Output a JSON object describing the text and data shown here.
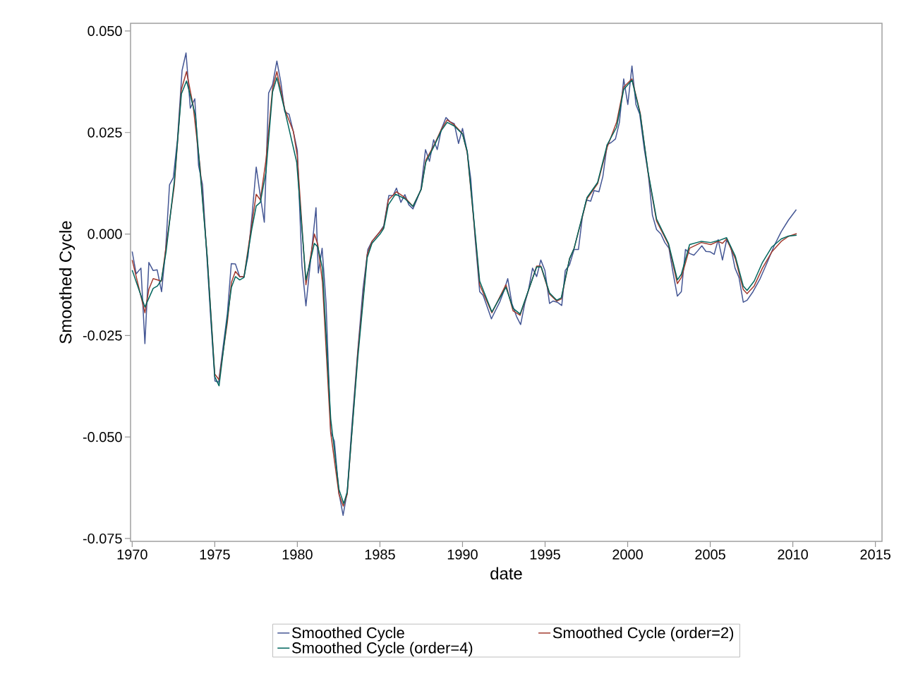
{
  "chart_data": {
    "type": "line",
    "xlabel": "date",
    "ylabel": "Smoothed Cycle",
    "xlim": [
      1969.9,
      2015.4
    ],
    "ylim": [
      -0.0757,
      0.0519
    ],
    "xticks": [
      1970,
      1975,
      1980,
      1985,
      1990,
      1995,
      2000,
      2005,
      2010,
      2015
    ],
    "yticks": [
      {
        "value": -0.075,
        "label": "-0.075"
      },
      {
        "value": -0.05,
        "label": "-0.050"
      },
      {
        "value": -0.025,
        "label": "-0.025"
      },
      {
        "value": 0,
        "label": "0.000"
      },
      {
        "value": 0.025,
        "label": "0.025"
      },
      {
        "value": 0.05,
        "label": "0.050"
      }
    ],
    "legend": "bottom",
    "series": [
      {
        "name": "Smoothed Cycle",
        "color": "#445694",
        "x": [
          1970.0,
          1970.24,
          1970.53,
          1970.77,
          1971.01,
          1971.27,
          1971.51,
          1971.78,
          1972.02,
          1972.26,
          1972.49,
          1972.74,
          1973.02,
          1973.26,
          1973.52,
          1973.79,
          1974.02,
          1974.26,
          1974.52,
          1974.77,
          1975.01,
          1975.23,
          1975.51,
          1975.76,
          1976.0,
          1976.25,
          1976.51,
          1976.77,
          1977.01,
          1977.25,
          1977.51,
          1977.76,
          1978.0,
          1978.26,
          1978.5,
          1978.76,
          1979.0,
          1979.24,
          1979.5,
          1979.76,
          1980.0,
          1980.28,
          1980.52,
          1981.13,
          1981.27,
          1981.5,
          1981.74,
          1982.02,
          1982.24,
          1982.52,
          1982.77,
          1983.02,
          1983.3,
          1983.66,
          1983.97,
          1984.27,
          1984.52,
          1984.95,
          1985.23,
          1985.54,
          1985.8,
          1986.0,
          1986.27,
          1986.51,
          1986.75,
          1987.0,
          1987.26,
          1987.48,
          1987.76,
          1988.0,
          1988.25,
          1988.47,
          1988.72,
          1989.0,
          1989.26,
          1989.5,
          1989.76,
          1990.0,
          1990.26,
          1990.5,
          1990.76,
          1991.04,
          1991.25,
          1991.5,
          1991.75,
          1991.99,
          1992.25,
          1992.49,
          1992.74,
          1992.99,
          1993.27,
          1993.52,
          1993.77,
          1993.99,
          1994.24,
          1994.49,
          1994.74,
          1994.99,
          1995.27,
          1995.49,
          1995.74,
          1996.01,
          1996.22,
          1996.48,
          1996.76,
          1997.02,
          1997.26,
          1997.5,
          1997.76,
          1997.97,
          1998.26,
          1998.5,
          1998.76,
          1999.02,
          1999.26,
          1999.5,
          1999.76,
          2000.01,
          2000.26,
          2000.5,
          2000.73,
          2001.01,
          2001.25,
          2001.5,
          2001.75,
          2002.01,
          2002.25,
          2002.5,
          2002.75,
          2003.01,
          2003.25,
          2003.5,
          2003.75,
          2004.01,
          2004.25,
          2004.49,
          2004.74,
          2005.0,
          2005.24,
          2005.48,
          2005.74,
          2005.99,
          2006.24,
          2006.5,
          2006.74,
          2007.0,
          2007.23,
          2007.59,
          2008.02,
          2008.45,
          2008.87,
          2009.3,
          2009.73,
          2010.21
        ],
        "values": [
          -0.0043,
          -0.0098,
          -0.0084,
          -0.027,
          -0.007,
          -0.009,
          -0.0088,
          -0.0142,
          -0.0041,
          0.0121,
          0.0139,
          0.0232,
          0.0403,
          0.0446,
          0.031,
          0.0333,
          0.0168,
          0.0121,
          -0.0055,
          -0.0218,
          -0.0362,
          -0.0365,
          -0.0276,
          -0.0197,
          -0.0073,
          -0.0074,
          -0.0105,
          -0.0105,
          -0.0055,
          0.0043,
          0.0165,
          0.0093,
          0.0029,
          0.0347,
          0.0368,
          0.0426,
          0.0374,
          0.0301,
          0.0295,
          0.0252,
          0.0206,
          -0.0079,
          -0.0177,
          0.0065,
          -0.0096,
          -0.0035,
          -0.0171,
          -0.0487,
          -0.051,
          -0.0638,
          -0.0693,
          -0.0635,
          -0.0473,
          -0.0287,
          -0.0137,
          -0.0038,
          -0.0018,
          0.0003,
          0.002,
          0.0095,
          0.0095,
          0.0113,
          0.0078,
          0.0097,
          0.0072,
          0.0062,
          0.0087,
          0.011,
          0.0208,
          0.0179,
          0.0232,
          0.0208,
          0.0258,
          0.0287,
          0.0276,
          0.0272,
          0.0223,
          0.026,
          0.0208,
          0.0136,
          -0.0009,
          -0.0142,
          -0.0151,
          -0.018,
          -0.0209,
          -0.0189,
          -0.0168,
          -0.0142,
          -0.011,
          -0.0171,
          -0.0203,
          -0.0223,
          -0.0171,
          -0.0139,
          -0.0084,
          -0.0105,
          -0.0064,
          -0.009,
          -0.0171,
          -0.0165,
          -0.0168,
          -0.0176,
          -0.009,
          -0.0076,
          -0.0038,
          -0.0038,
          0.0043,
          0.0084,
          0.0081,
          0.0107,
          0.0104,
          0.0142,
          0.022,
          0.0226,
          0.0234,
          0.0275,
          0.0382,
          0.0319,
          0.0414,
          0.0319,
          0.0295,
          0.0208,
          0.0147,
          0.0046,
          0.0011,
          0.0,
          -0.0021,
          -0.0035,
          -0.0096,
          -0.0153,
          -0.0142,
          -0.0038,
          -0.0048,
          -0.0052,
          -0.0041,
          -0.0029,
          -0.0043,
          -0.0044,
          -0.005,
          -0.0014,
          -0.0064,
          -0.0015,
          -0.0032,
          -0.0084,
          -0.0107,
          -0.0168,
          -0.0163,
          -0.0142,
          -0.011,
          -0.007,
          -0.0029,
          0.0006,
          0.0034,
          0.006
        ]
      },
      {
        "name": "Smoothed Cycle (order=2)",
        "color": "#a23a2e",
        "x": [
          1970.0,
          1970.77,
          1971.01,
          1971.27,
          1971.77,
          1972.05,
          1972.55,
          1972.98,
          1973.29,
          1973.69,
          1974.11,
          1974.54,
          1975.0,
          1975.26,
          1975.76,
          1976.01,
          1976.25,
          1976.51,
          1976.77,
          1977.25,
          1977.51,
          1977.76,
          1978.1,
          1978.5,
          1978.76,
          1979.24,
          1979.76,
          1979.99,
          1980.52,
          1981.03,
          1981.24,
          1981.52,
          1982.02,
          1982.52,
          1982.78,
          1983.02,
          1983.66,
          1984.23,
          1984.52,
          1985.01,
          1985.23,
          1985.51,
          1986.0,
          1986.51,
          1987.0,
          1987.5,
          1987.78,
          1988.29,
          1988.72,
          1989.07,
          1989.5,
          1990.0,
          1990.29,
          1990.78,
          1991.04,
          1991.78,
          1992.63,
          1993.06,
          1993.49,
          1994.49,
          1994.74,
          1995.27,
          1995.7,
          1995.98,
          1996.48,
          1996.76,
          1997.54,
          1998.18,
          1998.76,
          1999.33,
          1999.76,
          2000.26,
          2000.76,
          2001.25,
          2001.75,
          2002.47,
          2003.01,
          2003.25,
          2003.75,
          2004.46,
          2005.03,
          2005.48,
          2005.74,
          2005.99,
          2006.52,
          2007.0,
          2007.23,
          2007.66,
          2008.16,
          2008.73,
          2009.3,
          2009.73,
          2010.23
        ],
        "values": [
          -0.0064,
          -0.0194,
          -0.0136,
          -0.011,
          -0.0116,
          -0.0032,
          0.0119,
          0.0356,
          0.04,
          0.0316,
          0.0165,
          -0.0055,
          -0.0345,
          -0.0359,
          -0.0218,
          -0.0119,
          -0.0092,
          -0.0105,
          -0.0105,
          0.0026,
          0.0098,
          0.0084,
          0.0182,
          0.0359,
          0.04,
          0.0307,
          0.0252,
          0.0194,
          -0.0125,
          0.0,
          -0.0026,
          -0.0119,
          -0.049,
          -0.0641,
          -0.067,
          -0.0641,
          -0.0293,
          -0.005,
          -0.0018,
          0.0006,
          0.0017,
          0.0084,
          0.0104,
          0.009,
          0.0068,
          0.011,
          0.0182,
          0.022,
          0.0258,
          0.0281,
          0.0269,
          0.0247,
          0.02,
          -0.0009,
          -0.0125,
          -0.0194,
          -0.0125,
          -0.0189,
          -0.02,
          -0.0079,
          -0.0079,
          -0.0148,
          -0.0165,
          -0.016,
          -0.0061,
          -0.0035,
          0.0087,
          0.0124,
          0.0214,
          0.0275,
          0.0362,
          0.0382,
          0.0298,
          0.0147,
          0.0032,
          -0.0026,
          -0.0122,
          -0.0107,
          -0.0035,
          -0.0021,
          -0.0026,
          -0.0018,
          -0.0023,
          -0.0012,
          -0.0061,
          -0.0137,
          -0.0147,
          -0.0128,
          -0.0084,
          -0.0044,
          -0.0018,
          -0.0006,
          0.0001
        ]
      },
      {
        "name": "Smoothed Cycle (order=4)",
        "color": "#01665e",
        "x": [
          1970.0,
          1970.77,
          1971.27,
          1971.53,
          1971.77,
          1972.05,
          1972.55,
          1972.98,
          1973.29,
          1973.83,
          1974.54,
          1975.0,
          1975.26,
          1975.76,
          1976.01,
          1976.25,
          1976.51,
          1976.77,
          1977.25,
          1977.51,
          1977.76,
          1978.1,
          1978.5,
          1978.76,
          1979.24,
          1979.96,
          1980.52,
          1981.03,
          1981.24,
          1981.52,
          1982.02,
          1982.52,
          1982.81,
          1983.02,
          1983.66,
          1984.23,
          1984.52,
          1985.01,
          1985.23,
          1985.51,
          1985.94,
          1986.51,
          1987.0,
          1987.5,
          1987.78,
          1988.29,
          1988.72,
          1989.07,
          1989.5,
          1990.0,
          1990.29,
          1990.78,
          1991.04,
          1991.78,
          1992.63,
          1993.06,
          1993.49,
          1994.49,
          1994.77,
          1995.27,
          1995.7,
          1995.98,
          1996.48,
          1996.76,
          1997.54,
          1998.18,
          1998.76,
          1999.33,
          1999.76,
          2000.26,
          2000.76,
          2001.25,
          2001.75,
          2002.47,
          2003.01,
          2003.25,
          2003.75,
          2004.46,
          2005.03,
          2005.6,
          2005.99,
          2006.52,
          2007.0,
          2007.23,
          2007.66,
          2008.16,
          2008.73,
          2009.3,
          2009.73,
          2010.23
        ],
        "values": [
          -0.0089,
          -0.018,
          -0.0134,
          -0.0128,
          -0.0113,
          -0.0044,
          0.013,
          0.0345,
          0.0377,
          0.0292,
          -0.0055,
          -0.0351,
          -0.0374,
          -0.0206,
          -0.0131,
          -0.0105,
          -0.0113,
          -0.0107,
          0.0014,
          0.0069,
          0.0078,
          0.0153,
          0.035,
          0.0385,
          0.0304,
          0.0177,
          -0.0113,
          -0.0023,
          -0.0032,
          -0.0084,
          -0.0455,
          -0.0629,
          -0.0664,
          -0.0635,
          -0.0305,
          -0.0058,
          -0.0023,
          0.0,
          0.0014,
          0.0072,
          0.0098,
          0.0087,
          0.0068,
          0.011,
          0.0177,
          0.0217,
          0.0255,
          0.0275,
          0.0266,
          0.0246,
          0.0203,
          -0.0003,
          -0.0116,
          -0.0192,
          -0.0131,
          -0.0183,
          -0.0197,
          -0.0081,
          -0.0081,
          -0.0145,
          -0.0163,
          -0.0157,
          -0.0061,
          -0.0035,
          0.009,
          0.0127,
          0.022,
          0.0263,
          0.0356,
          0.0379,
          0.0295,
          0.015,
          0.0037,
          -0.0023,
          -0.0113,
          -0.0099,
          -0.0026,
          -0.0018,
          -0.0021,
          -0.0015,
          -0.0009,
          -0.0055,
          -0.0128,
          -0.0139,
          -0.0116,
          -0.007,
          -0.0032,
          -0.0012,
          -0.0005,
          -0.0003
        ]
      }
    ]
  }
}
